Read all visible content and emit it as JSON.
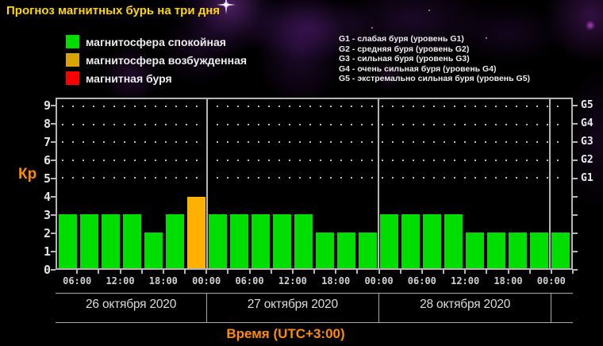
{
  "title": "Прогноз магнитных бурь на три дня",
  "colors": {
    "title": "#ffd700",
    "accent_orange": "#ff8c00",
    "quiet": "#00dd00",
    "excited_bar": "#fcb103",
    "excited_legend": "#d9a404",
    "storm": "#ff0000",
    "axis": "#b5b5b5"
  },
  "legend": {
    "items": [
      {
        "key": "quiet",
        "label": "магнитосфера спокойная",
        "color": "#00dd00"
      },
      {
        "key": "excited",
        "label": "магнитосфера возбужденная",
        "color": "#d9a404"
      },
      {
        "key": "storm",
        "label": "магнитная буря",
        "color": "#ff0000"
      }
    ]
  },
  "storm_scale": {
    "lines": [
      "G1 - слабая буря (уровень G1)",
      "G2 - средняя буря (уровень G2)",
      "G3 - сильная буря (уровень G3)",
      "G4 - очень сильная буря (уровень G4)",
      "G5 - экстремально сильная буря (уровень G5)"
    ]
  },
  "chart_data": {
    "type": "bar",
    "title": "Прогноз магнитных бурь на три дня",
    "ylabel": "Кр",
    "xlabel": "Время (UTC+3:00)",
    "ylim": [
      0,
      9
    ],
    "y_ticks": [
      0,
      1,
      2,
      3,
      4,
      5,
      6,
      7,
      8,
      9
    ],
    "grid_levels": [
      5,
      6,
      7,
      8,
      9
    ],
    "right_axis_labels": [
      {
        "kp": 5,
        "label": "G1"
      },
      {
        "kp": 6,
        "label": "G2"
      },
      {
        "kp": 7,
        "label": "G3"
      },
      {
        "kp": 8,
        "label": "G4"
      },
      {
        "kp": 9,
        "label": "G5"
      }
    ],
    "hours_per_bar": 3,
    "start_hour": 3,
    "time_labels": [
      "06:00",
      "12:00",
      "18:00",
      "00:00",
      "06:00",
      "12:00",
      "18:00",
      "00:00",
      "06:00",
      "12:00",
      "18:00",
      "00:00"
    ],
    "days": [
      {
        "date": "26 октября 2020",
        "kp": [
          3,
          3,
          3,
          3,
          2,
          3,
          4
        ],
        "states": [
          "quiet",
          "quiet",
          "quiet",
          "quiet",
          "quiet",
          "quiet",
          "excited"
        ]
      },
      {
        "date": "27 октября 2020",
        "kp": [
          3,
          3,
          3,
          3,
          3,
          2,
          2,
          2
        ],
        "states": [
          "quiet",
          "quiet",
          "quiet",
          "quiet",
          "quiet",
          "quiet",
          "quiet",
          "quiet"
        ]
      },
      {
        "date": "28 октября 2020",
        "kp": [
          3,
          3,
          3,
          3,
          2,
          2,
          2,
          2
        ],
        "states": [
          "quiet",
          "quiet",
          "quiet",
          "quiet",
          "quiet",
          "quiet",
          "quiet",
          "quiet"
        ]
      },
      {
        "date": "",
        "kp": [
          2
        ],
        "states": [
          "quiet"
        ]
      }
    ]
  }
}
